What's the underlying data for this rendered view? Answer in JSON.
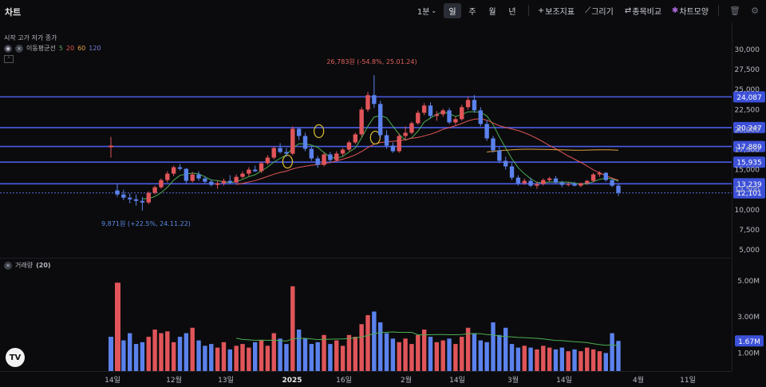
{
  "toolbar": {
    "title": "차트",
    "interval": "1분",
    "periods": [
      "일",
      "주",
      "월",
      "년"
    ],
    "active_period": "일",
    "tools": [
      "보조지표",
      "그리기",
      "종목비교",
      "차트모양"
    ]
  },
  "legend": {
    "ohlc": "시작 고가 저가 종가",
    "ma_name": "이동평균선",
    "ma_periods": [
      "5",
      "20",
      "60",
      "120"
    ]
  },
  "volume_legend": {
    "name": "거래량",
    "param": "(20)"
  },
  "colors": {
    "up": "#e0555a",
    "down": "#5b82ec",
    "hline": "#4b5ce4",
    "ma5": "#4caf50",
    "ma20": "#e05555",
    "ma60": "#e0a040",
    "bg": "#0b0b0d"
  },
  "annotations": {
    "high": "26,783원 (-54.8%, 25.01.24)",
    "low": "9,871원 (+22.5%, 24.11.22)"
  },
  "chart_data": {
    "type": "candlestick",
    "price_axis": {
      "ticks": [
        "30,000",
        "27,500",
        "25,000",
        "22,500",
        "20,000",
        "17,500",
        "15,000",
        "12,500",
        "10,000",
        "7,500",
        "5,000"
      ]
    },
    "horizontal_lines": [
      "24,087",
      "20,247",
      "17,889",
      "15,935",
      "13,239"
    ],
    "last_price_label": "12,101",
    "volume_axis": {
      "ticks": [
        "5.00M",
        "3.00M",
        "1.00M"
      ]
    },
    "volume_last_label": "1.67M",
    "x_labels": [
      "14일",
      "12월",
      "13일",
      "2025",
      "16일",
      "2월",
      "14일",
      "3월",
      "14일",
      "4월",
      "11일"
    ],
    "candles": [
      [
        12400,
        13300,
        11600,
        11900
      ],
      [
        11900,
        12500,
        11200,
        11500
      ],
      [
        11500,
        12000,
        10800,
        11300
      ],
      [
        11300,
        11900,
        10500,
        11100
      ],
      [
        11100,
        11600,
        9871,
        10900
      ],
      [
        10900,
        12300,
        10700,
        12100
      ],
      [
        12100,
        13000,
        11900,
        12800
      ],
      [
        12800,
        13900,
        12600,
        13700
      ],
      [
        13700,
        14800,
        13400,
        14500
      ],
      [
        14500,
        15500,
        14200,
        15300
      ],
      [
        15300,
        15700,
        14900,
        15100
      ],
      [
        15100,
        15200,
        13300,
        13600
      ],
      [
        13600,
        14700,
        13400,
        14400
      ],
      [
        14400,
        14800,
        13600,
        13900
      ],
      [
        13900,
        14200,
        13300,
        13500
      ],
      [
        13500,
        13800,
        12900,
        13100
      ],
      [
        13100,
        13600,
        12600,
        13300
      ],
      [
        13300,
        13900,
        13000,
        13600
      ],
      [
        13600,
        14300,
        13200,
        13400
      ],
      [
        13400,
        14400,
        13300,
        14100
      ],
      [
        14100,
        14800,
        13900,
        14500
      ],
      [
        14500,
        15300,
        14200,
        15000
      ],
      [
        15000,
        15500,
        14700,
        14800
      ],
      [
        14800,
        16000,
        14600,
        15800
      ],
      [
        15800,
        16800,
        15600,
        16500
      ],
      [
        16500,
        17900,
        16300,
        17700
      ],
      [
        17700,
        18300,
        17000,
        17200
      ],
      [
        17200,
        17700,
        16600,
        17000
      ],
      [
        17000,
        20400,
        16800,
        20100
      ],
      [
        20100,
        20300,
        18700,
        19200
      ],
      [
        19200,
        19600,
        17300,
        17600
      ],
      [
        17600,
        17900,
        16100,
        16400
      ],
      [
        16400,
        16700,
        15200,
        15600
      ],
      [
        15600,
        17100,
        15400,
        16900
      ],
      [
        16900,
        17200,
        15800,
        16200
      ],
      [
        16200,
        17300,
        16000,
        17000
      ],
      [
        17000,
        17700,
        16700,
        17500
      ],
      [
        17500,
        18600,
        17300,
        18400
      ],
      [
        18400,
        19600,
        18200,
        19400
      ],
      [
        19400,
        22800,
        19100,
        22500
      ],
      [
        22500,
        24700,
        22200,
        24300
      ],
      [
        24300,
        26783,
        22700,
        23200
      ],
      [
        23200,
        23600,
        18900,
        19300
      ],
      [
        19300,
        19900,
        17600,
        18000
      ],
      [
        18000,
        18400,
        17100,
        17300
      ],
      [
        17300,
        19500,
        17100,
        19200
      ],
      [
        19200,
        20400,
        18700,
        19600
      ],
      [
        19600,
        21000,
        19400,
        20800
      ],
      [
        20800,
        22400,
        20600,
        22100
      ],
      [
        22100,
        23300,
        21800,
        23000
      ],
      [
        23000,
        23400,
        21400,
        21700
      ],
      [
        21700,
        22300,
        21100,
        21900
      ],
      [
        21900,
        22600,
        21600,
        22400
      ],
      [
        22400,
        22700,
        20700,
        20900
      ],
      [
        20900,
        21600,
        20600,
        21300
      ],
      [
        21300,
        23100,
        21100,
        22800
      ],
      [
        22800,
        24100,
        22500,
        23700
      ],
      [
        23700,
        24300,
        22100,
        22400
      ],
      [
        22400,
        22800,
        20400,
        20700
      ],
      [
        20700,
        21200,
        18600,
        18900
      ],
      [
        18900,
        19200,
        17100,
        17400
      ],
      [
        17400,
        17800,
        15800,
        16100
      ],
      [
        16100,
        16600,
        15000,
        15400
      ],
      [
        15400,
        15800,
        13700,
        14000
      ],
      [
        14000,
        14300,
        13000,
        13300
      ],
      [
        13300,
        13900,
        13100,
        13600
      ],
      [
        13600,
        14000,
        12800,
        13000
      ],
      [
        13000,
        13500,
        12600,
        13200
      ],
      [
        13200,
        13900,
        13000,
        13700
      ],
      [
        13700,
        14100,
        13500,
        13900
      ],
      [
        13900,
        14200,
        13200,
        13400
      ],
      [
        13400,
        13600,
        12800,
        13100
      ],
      [
        13100,
        13400,
        12900,
        13200
      ],
      [
        13200,
        13500,
        12900,
        13000
      ],
      [
        13000,
        13400,
        12800,
        13300
      ],
      [
        13300,
        13700,
        13100,
        13600
      ],
      [
        13600,
        14600,
        13400,
        14400
      ],
      [
        14400,
        14800,
        14100,
        14600
      ],
      [
        14600,
        14700,
        13500,
        13700
      ],
      [
        13700,
        13900,
        12800,
        13000
      ],
      [
        13000,
        13300,
        11700,
        12101
      ]
    ],
    "outlier_candle": {
      "index": 0,
      "price": 17900
    },
    "volumes": [
      2.9,
      1.7,
      2.1,
      1.5,
      1.6,
      1.9,
      2.3,
      2.1,
      2.2,
      1.6,
      1.9,
      2.1,
      2.4,
      1.7,
      1.4,
      1.5,
      1.3,
      1.6,
      1.2,
      1.4,
      1.5,
      1.3,
      1.6,
      1.7,
      1.4,
      2.1,
      1.8,
      1.5,
      4.7,
      2.3,
      1.8,
      1.5,
      1.6,
      2.0,
      1.5,
      1.7,
      1.4,
      2.0,
      1.9,
      2.6,
      3.1,
      3.3,
      2.7,
      2.1,
      1.8,
      1.6,
      1.8,
      1.5,
      2.0,
      2.3,
      1.9,
      1.6,
      1.7,
      1.8,
      1.5,
      1.9,
      2.4,
      2.1,
      1.7,
      1.6,
      2.7,
      2.0,
      2.4,
      1.5,
      1.3,
      1.4,
      1.3,
      1.2,
      1.4,
      1.3,
      1.2,
      1.3,
      1.1,
      1.2,
      1.1,
      1.3,
      1.2,
      1.1,
      1.0,
      2.1,
      1.67
    ],
    "big_volume": {
      "index": 0,
      "value": 4.9
    }
  }
}
